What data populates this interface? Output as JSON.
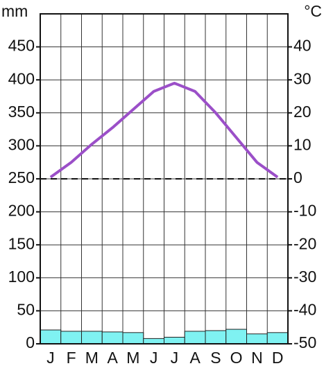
{
  "chart_data": {
    "type": "bar",
    "categories": [
      "J",
      "F",
      "M",
      "A",
      "M",
      "J",
      "J",
      "A",
      "S",
      "O",
      "N",
      "D"
    ],
    "y_label": "mm",
    "y2_label": "°C",
    "series": [
      {
        "type": "bar",
        "color": "#7ff2f2",
        "values": [
          21,
          19,
          19,
          18,
          17,
          8,
          10,
          19,
          20,
          22,
          15,
          17
        ]
      },
      {
        "type": "line",
        "axis": "y2",
        "color": "#9b4fc8",
        "values": [
          0.5,
          5,
          10.5,
          15.5,
          21,
          26.5,
          29,
          26.5,
          20,
          12.5,
          5,
          0.5
        ]
      }
    ],
    "ylim": [
      0,
      500
    ],
    "yticks": [
      0,
      50,
      100,
      150,
      200,
      250,
      300,
      350,
      400,
      450
    ],
    "y2lim": [
      -50,
      50
    ],
    "y2ticks": [
      -50,
      -40,
      -30,
      -20,
      -10,
      0,
      10,
      20,
      30,
      40
    ],
    "reference_line": {
      "value": 0,
      "axis": "y2",
      "style": "dashed"
    },
    "grid": true
  }
}
